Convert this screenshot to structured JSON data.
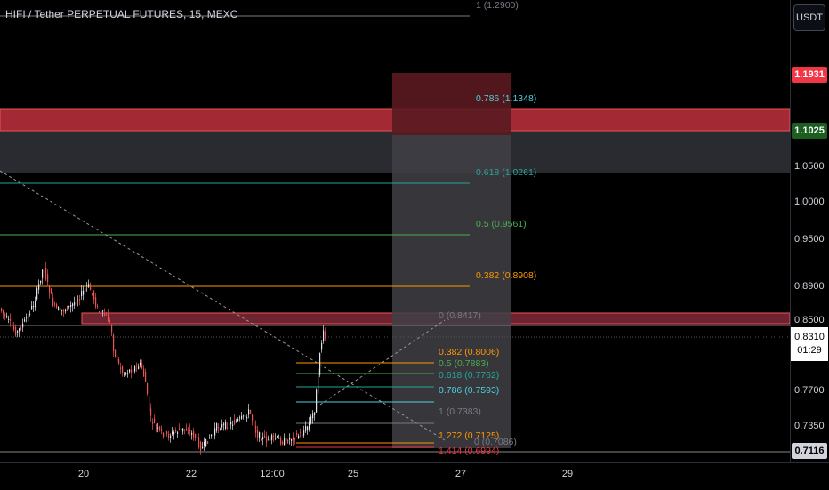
{
  "header": {
    "title": "HIFI / Tether PERPETUAL FUTURES, 15, MEXC",
    "currency_button": "USDT"
  },
  "y_axis": {
    "ticks": [
      "1.0500",
      "1.0000",
      "0.9500",
      "0.8900",
      "0.8500",
      "0.7700",
      "0.7350"
    ],
    "badges": [
      {
        "label": "1.1931",
        "color": "#f23645"
      },
      {
        "label": "1.1025",
        "color": "#1b5e20"
      }
    ],
    "current_price": "0.8310",
    "countdown": "01:29",
    "low_label": "0.7116"
  },
  "x_axis": {
    "ticks": [
      "20",
      "22",
      "12:00",
      "25",
      "27",
      "29"
    ]
  },
  "fib_upper": [
    {
      "label": "1 (1.2900)",
      "color": "#787b86"
    },
    {
      "label": "0.786 (1.1348)",
      "color": "#4dd0e1"
    },
    {
      "label": "0.618 (1.0261)",
      "color": "#26a69a"
    },
    {
      "label": "0.5 (0.9561)",
      "color": "#4caf50"
    },
    {
      "label": "0.382 (0.8908)",
      "color": "#ff9800"
    },
    {
      "label": "0 (0.8417)",
      "color": "#787b86"
    }
  ],
  "fib_lower": [
    {
      "label": "0.382 (0.8006)",
      "color": "#ff9800"
    },
    {
      "label": "0.5 (0.7883)",
      "color": "#4caf50"
    },
    {
      "label": "0.618 (0.7762)",
      "color": "#26a69a"
    },
    {
      "label": "0.786 (0.7593)",
      "color": "#4dd0e1"
    },
    {
      "label": "1 (0.7383)",
      "color": "#787b86"
    },
    {
      "label": "1.272 (0.7125)",
      "color": "#ff9800"
    },
    {
      "label": "0 (0.7086)",
      "color": "#787b86"
    },
    {
      "label": "1.414 (0.6994)",
      "color": "#f23645"
    }
  ]
}
